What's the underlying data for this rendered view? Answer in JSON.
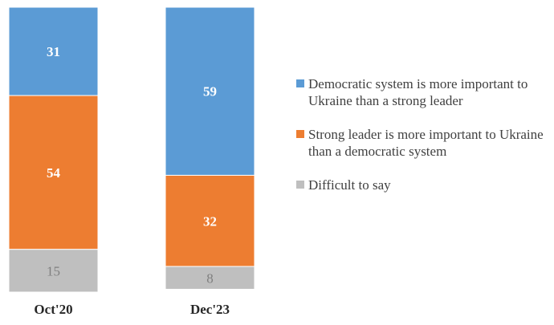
{
  "chart_data": {
    "type": "bar",
    "stacked": true,
    "percent": true,
    "categories": [
      "Oct'20",
      "Dec'23"
    ],
    "series": [
      {
        "name": "Democratic system is more important to Ukraine than a strong leader",
        "values": [
          31,
          59
        ],
        "color": "#5b9bd5",
        "label_color": "#ffffff"
      },
      {
        "name": "Strong leader is more important to Ukraine than a democratic system",
        "values": [
          54,
          32
        ],
        "color": "#ed7d31",
        "label_color": "#ffffff"
      },
      {
        "name": "Difficult to say",
        "values": [
          15,
          8
        ],
        "color": "#bfbfbf",
        "label_color": "#7f7f7f"
      }
    ],
    "ylim": [
      0,
      100
    ],
    "title": "",
    "xlabel": "",
    "ylabel": "",
    "legend_position": "right"
  }
}
